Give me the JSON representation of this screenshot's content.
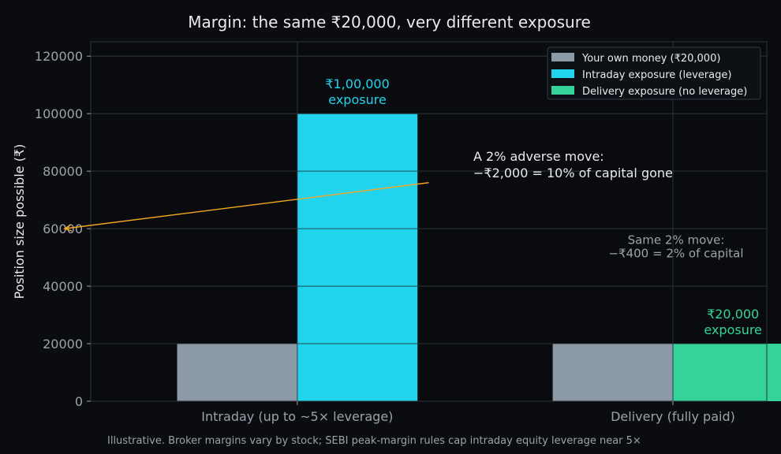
{
  "colors": {
    "background": "#0b0c10",
    "plot_bg": "#0a0b0f",
    "grid": "#243039",
    "axis_spine": "#2a343c",
    "text": "#e8eaed",
    "muted": "#9aa3ab",
    "own_money": "#8c99a6",
    "intraday": "#22d3ee",
    "delivery": "#34d399",
    "arrow": "#f5a623"
  },
  "chart_data": {
    "type": "bar",
    "title": "Margin: the same ₹20,000, very different exposure",
    "ylabel": "Position size possible (₹)",
    "xlabel": "",
    "ylim": [
      0,
      125000
    ],
    "yticks": [
      0,
      20000,
      40000,
      60000,
      80000,
      100000,
      120000
    ],
    "grid": true,
    "legend_position": "top-right",
    "categories": [
      "Intraday (up to ~5× leverage)",
      "Delivery (fully paid)"
    ],
    "series": [
      {
        "name": "Your own money (₹20,000)",
        "color_key": "own_money",
        "values": [
          20000,
          20000
        ]
      },
      {
        "name": "Intraday exposure (leverage)",
        "color_key": "intraday",
        "values": [
          100000,
          null
        ]
      },
      {
        "name": "Delivery exposure (no leverage)",
        "color_key": "delivery",
        "values": [
          null,
          20000
        ]
      }
    ],
    "bar_labels": [
      {
        "line1": "₹1,00,000",
        "line2": "exposure",
        "color_key": "intraday",
        "category": 0,
        "side": "right",
        "y": 100000
      },
      {
        "line1": "₹20,000",
        "line2": "exposure",
        "color_key": "delivery",
        "category": 1,
        "side": "right",
        "y": 20000
      }
    ],
    "annotations": [
      {
        "line1": "A 2% adverse move:",
        "line2": "−₹2,000 = 10% of capital gone",
        "text_x": 0.2,
        "text_y": 80000,
        "arrow_from_x": 0.35,
        "arrow_from_y": 76000,
        "arrow_to_x": -0.62,
        "arrow_to_y": 60000
      },
      {
        "line1": "Same 2% move:",
        "line2": "−₹400 = 2% of capital",
        "x": 1.16,
        "y": 53000
      }
    ],
    "footnote": "Illustrative. Broker margins vary by stock; SEBI peak-margin rules cap intraday equity leverage near 5×"
  }
}
